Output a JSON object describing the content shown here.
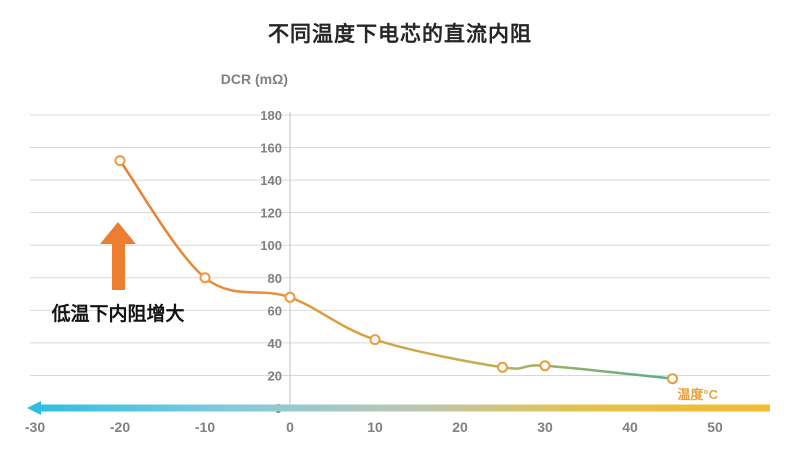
{
  "title": "不同温度下电芯的直流内阻",
  "annotation": {
    "text": "低温下内阻增大"
  },
  "chart_data": {
    "type": "line",
    "title": "不同温度下电芯的直流内阻",
    "xlabel": "温度°C",
    "ylabel": "DCR (mΩ)",
    "x": [
      -20,
      -10,
      0,
      10,
      25,
      30,
      45
    ],
    "values": [
      152,
      80,
      68,
      42,
      25,
      26,
      18
    ],
    "xlim": [
      -30,
      50
    ],
    "ylim": [
      0,
      180
    ],
    "x_ticks": [
      -30,
      -20,
      -10,
      0,
      10,
      20,
      30,
      40,
      50
    ],
    "y_ticks": [
      0,
      20,
      40,
      60,
      80,
      100,
      120,
      140,
      160,
      180
    ],
    "grid": "horizontal",
    "legend": "none",
    "line_gradient": [
      "#ED7D31",
      "#DF9A3C",
      "#BFB054",
      "#52B18A"
    ],
    "axis_bar_gradient": [
      "#2FBFE3",
      "#7ECBDE",
      "#B9C6B4",
      "#E3C24C",
      "#F4BB31"
    ],
    "colors": {
      "title": "#262626",
      "tick": "#808080",
      "grid": "#D9D9D9",
      "axis_line": "#BFBFBF",
      "arrow": "#ED7D31",
      "xlabel_text": "#E8A13C",
      "ylabel_text": "#808080",
      "marker_fill": "#FFFFFF",
      "marker_stroke": "#ED9A3F"
    }
  }
}
